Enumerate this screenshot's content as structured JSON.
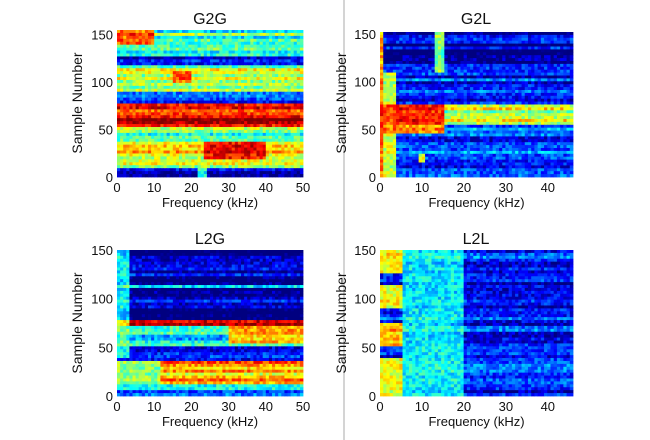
{
  "chart_data": [
    {
      "id": "g2g",
      "type": "heatmap",
      "title": "G2G",
      "xlabel": "Frequency (kHz)",
      "ylabel": "Sample Number",
      "xlim": [
        0,
        50
      ],
      "ylim": [
        0,
        155
      ],
      "xticks": [
        0,
        10,
        20,
        30,
        40,
        50
      ],
      "yticks": [
        0,
        50,
        100,
        150
      ],
      "colormap": "jet",
      "value_range": [
        0,
        1
      ],
      "bands": [
        {
          "y": [
            0,
            10
          ],
          "level": 0.12
        },
        {
          "y": [
            10,
            20
          ],
          "level": 0.55
        },
        {
          "y": [
            20,
            38
          ],
          "level": 0.62
        },
        {
          "y": [
            38,
            45
          ],
          "level": 0.35
        },
        {
          "y": [
            45,
            52
          ],
          "level": 0.58
        },
        {
          "y": [
            52,
            76
          ],
          "level": 0.9
        },
        {
          "y": [
            76,
            90
          ],
          "level": 0.22
        },
        {
          "y": [
            90,
            117
          ],
          "level": 0.52
        },
        {
          "y": [
            117,
            128
          ],
          "level": 0.05
        },
        {
          "y": [
            128,
            155
          ],
          "level": 0.45
        }
      ],
      "hotspots": [
        {
          "x": [
            23,
            40
          ],
          "y": [
            20,
            38
          ],
          "level": 0.88
        },
        {
          "x": [
            0,
            10
          ],
          "y": [
            140,
            155
          ],
          "level": 0.85
        },
        {
          "x": [
            15,
            20
          ],
          "y": [
            100,
            112
          ],
          "level": 0.78
        },
        {
          "x": [
            22,
            24
          ],
          "y": [
            0,
            20
          ],
          "level": 0.45
        }
      ]
    },
    {
      "id": "g2l",
      "type": "heatmap",
      "title": "G2L",
      "xlabel": "Frequency (kHz)",
      "ylabel": "Sample Number",
      "xlim": [
        0,
        46
      ],
      "ylim": [
        0,
        152
      ],
      "xticks": [
        0,
        10,
        20,
        30,
        40
      ],
      "yticks": [
        0,
        50,
        100,
        150
      ],
      "colormap": "jet",
      "value_range": [
        0,
        1
      ],
      "bands": [
        {
          "y": [
            0,
            12
          ],
          "level": 0.15
        },
        {
          "y": [
            12,
            38
          ],
          "level": 0.25
        },
        {
          "y": [
            38,
            55
          ],
          "level": 0.2
        },
        {
          "y": [
            55,
            75
          ],
          "level": 0.55
        },
        {
          "y": [
            75,
            85
          ],
          "level": 0.08
        },
        {
          "y": [
            85,
            113
          ],
          "level": 0.15
        },
        {
          "y": [
            113,
            152
          ],
          "level": 0.06
        }
      ],
      "hotspots": [
        {
          "x": [
            0,
            1
          ],
          "y": [
            0,
            152
          ],
          "level": 0.92
        },
        {
          "x": [
            0,
            15
          ],
          "y": [
            45,
            75
          ],
          "level": 0.88
        },
        {
          "x": [
            0,
            4
          ],
          "y": [
            0,
            110
          ],
          "level": 0.65
        },
        {
          "x": [
            13,
            15
          ],
          "y": [
            110,
            152
          ],
          "level": 0.6
        },
        {
          "x": [
            9,
            11
          ],
          "y": [
            15,
            25
          ],
          "level": 0.7
        }
      ]
    },
    {
      "id": "l2g",
      "type": "heatmap",
      "title": "L2G",
      "xlabel": "Frequency (kHz)",
      "ylabel": "Sample Number",
      "xlim": [
        0,
        50
      ],
      "ylim": [
        0,
        150
      ],
      "xticks": [
        0,
        10,
        20,
        30,
        40,
        50
      ],
      "yticks": [
        0,
        50,
        100,
        150
      ],
      "colormap": "jet",
      "value_range": [
        0,
        1
      ],
      "bands": [
        {
          "y": [
            0,
            12
          ],
          "level": 0.3
        },
        {
          "y": [
            12,
            35
          ],
          "level": 0.7
        },
        {
          "y": [
            35,
            40
          ],
          "level": 0.02
        },
        {
          "y": [
            40,
            52
          ],
          "level": 0.12
        },
        {
          "y": [
            52,
            72
          ],
          "level": 0.35
        },
        {
          "y": [
            72,
            77
          ],
          "level": 0.9
        },
        {
          "y": [
            77,
            110
          ],
          "level": 0.06
        },
        {
          "y": [
            110,
            115
          ],
          "level": 0.3
        },
        {
          "y": [
            115,
            150
          ],
          "level": 0.05
        }
      ],
      "hotspots": [
        {
          "x": [
            0,
            12
          ],
          "y": [
            12,
            35
          ],
          "level": 0.3
        },
        {
          "x": [
            30,
            50
          ],
          "y": [
            55,
            72
          ],
          "level": 0.75
        },
        {
          "x": [
            0,
            3
          ],
          "y": [
            40,
            150
          ],
          "level": 0.4
        }
      ]
    },
    {
      "id": "l2l",
      "type": "heatmap",
      "title": "L2L",
      "xlabel": "Frequency (kHz)",
      "ylabel": "Sample Number",
      "xlim": [
        0,
        46
      ],
      "ylim": [
        0,
        150
      ],
      "xticks": [
        0,
        10,
        20,
        30,
        40
      ],
      "yticks": [
        0,
        50,
        100,
        150
      ],
      "colormap": "jet",
      "value_range": [
        0,
        1
      ],
      "bands": [
        {
          "y": [
            0,
            150
          ],
          "level": 0.15
        }
      ],
      "hotspots": [
        {
          "x": [
            0,
            5
          ],
          "y": [
            50,
            75
          ],
          "level": 0.85
        },
        {
          "x": [
            0,
            5
          ],
          "y": [
            90,
            115
          ],
          "level": 0.75
        },
        {
          "x": [
            0,
            5
          ],
          "y": [
            125,
            150
          ],
          "level": 0.75
        },
        {
          "x": [
            0,
            5
          ],
          "y": [
            0,
            40
          ],
          "level": 0.7
        },
        {
          "x": [
            5,
            20
          ],
          "y": [
            0,
            150
          ],
          "level": 0.35
        }
      ]
    }
  ]
}
